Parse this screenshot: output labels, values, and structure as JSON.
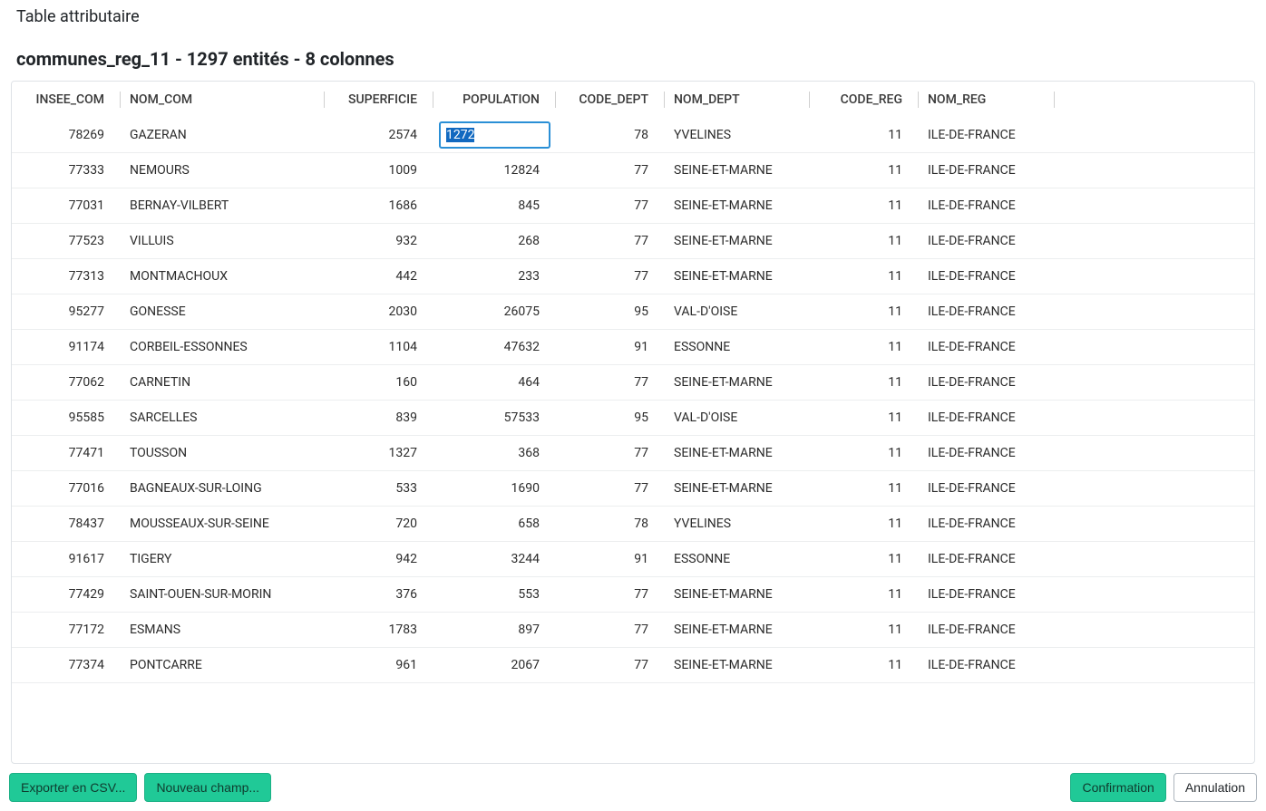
{
  "window": {
    "title": "Table attributaire"
  },
  "header": {
    "layer_name": "communes_reg_11",
    "entity_count": 1297,
    "entity_word": "entités",
    "column_count": 8,
    "column_word": "colonnes"
  },
  "table": {
    "columns": [
      {
        "key": "insee_com",
        "label": "INSEE_COM",
        "align": "right"
      },
      {
        "key": "nom_com",
        "label": "NOM_COM",
        "align": "left"
      },
      {
        "key": "superficie",
        "label": "SUPERFICIE",
        "align": "right"
      },
      {
        "key": "population",
        "label": "POPULATION",
        "align": "right"
      },
      {
        "key": "code_dept",
        "label": "CODE_DEPT",
        "align": "right"
      },
      {
        "key": "nom_dept",
        "label": "NOM_DEPT",
        "align": "left"
      },
      {
        "key": "code_reg",
        "label": "CODE_REG",
        "align": "right"
      },
      {
        "key": "nom_reg",
        "label": "NOM_REG",
        "align": "left"
      }
    ],
    "editing_cell": {
      "row": 0,
      "key": "population",
      "value": "1272"
    },
    "rows": [
      {
        "insee_com": "78269",
        "nom_com": "GAZERAN",
        "superficie": "2574",
        "population": "1272",
        "code_dept": "78",
        "nom_dept": "YVELINES",
        "code_reg": "11",
        "nom_reg": "ILE-DE-FRANCE"
      },
      {
        "insee_com": "77333",
        "nom_com": "NEMOURS",
        "superficie": "1009",
        "population": "12824",
        "code_dept": "77",
        "nom_dept": "SEINE-ET-MARNE",
        "code_reg": "11",
        "nom_reg": "ILE-DE-FRANCE"
      },
      {
        "insee_com": "77031",
        "nom_com": "BERNAY-VILBERT",
        "superficie": "1686",
        "population": "845",
        "code_dept": "77",
        "nom_dept": "SEINE-ET-MARNE",
        "code_reg": "11",
        "nom_reg": "ILE-DE-FRANCE"
      },
      {
        "insee_com": "77523",
        "nom_com": "VILLUIS",
        "superficie": "932",
        "population": "268",
        "code_dept": "77",
        "nom_dept": "SEINE-ET-MARNE",
        "code_reg": "11",
        "nom_reg": "ILE-DE-FRANCE"
      },
      {
        "insee_com": "77313",
        "nom_com": "MONTMACHOUX",
        "superficie": "442",
        "population": "233",
        "code_dept": "77",
        "nom_dept": "SEINE-ET-MARNE",
        "code_reg": "11",
        "nom_reg": "ILE-DE-FRANCE"
      },
      {
        "insee_com": "95277",
        "nom_com": "GONESSE",
        "superficie": "2030",
        "population": "26075",
        "code_dept": "95",
        "nom_dept": "VAL-D'OISE",
        "code_reg": "11",
        "nom_reg": "ILE-DE-FRANCE"
      },
      {
        "insee_com": "91174",
        "nom_com": "CORBEIL-ESSONNES",
        "superficie": "1104",
        "population": "47632",
        "code_dept": "91",
        "nom_dept": "ESSONNE",
        "code_reg": "11",
        "nom_reg": "ILE-DE-FRANCE"
      },
      {
        "insee_com": "77062",
        "nom_com": "CARNETIN",
        "superficie": "160",
        "population": "464",
        "code_dept": "77",
        "nom_dept": "SEINE-ET-MARNE",
        "code_reg": "11",
        "nom_reg": "ILE-DE-FRANCE"
      },
      {
        "insee_com": "95585",
        "nom_com": "SARCELLES",
        "superficie": "839",
        "population": "57533",
        "code_dept": "95",
        "nom_dept": "VAL-D'OISE",
        "code_reg": "11",
        "nom_reg": "ILE-DE-FRANCE"
      },
      {
        "insee_com": "77471",
        "nom_com": "TOUSSON",
        "superficie": "1327",
        "population": "368",
        "code_dept": "77",
        "nom_dept": "SEINE-ET-MARNE",
        "code_reg": "11",
        "nom_reg": "ILE-DE-FRANCE"
      },
      {
        "insee_com": "77016",
        "nom_com": "BAGNEAUX-SUR-LOING",
        "superficie": "533",
        "population": "1690",
        "code_dept": "77",
        "nom_dept": "SEINE-ET-MARNE",
        "code_reg": "11",
        "nom_reg": "ILE-DE-FRANCE"
      },
      {
        "insee_com": "78437",
        "nom_com": "MOUSSEAUX-SUR-SEINE",
        "superficie": "720",
        "population": "658",
        "code_dept": "78",
        "nom_dept": "YVELINES",
        "code_reg": "11",
        "nom_reg": "ILE-DE-FRANCE"
      },
      {
        "insee_com": "91617",
        "nom_com": "TIGERY",
        "superficie": "942",
        "population": "3244",
        "code_dept": "91",
        "nom_dept": "ESSONNE",
        "code_reg": "11",
        "nom_reg": "ILE-DE-FRANCE"
      },
      {
        "insee_com": "77429",
        "nom_com": "SAINT-OUEN-SUR-MORIN",
        "superficie": "376",
        "population": "553",
        "code_dept": "77",
        "nom_dept": "SEINE-ET-MARNE",
        "code_reg": "11",
        "nom_reg": "ILE-DE-FRANCE"
      },
      {
        "insee_com": "77172",
        "nom_com": "ESMANS",
        "superficie": "1783",
        "population": "897",
        "code_dept": "77",
        "nom_dept": "SEINE-ET-MARNE",
        "code_reg": "11",
        "nom_reg": "ILE-DE-FRANCE"
      },
      {
        "insee_com": "77374",
        "nom_com": "PONTCARRE",
        "superficie": "961",
        "population": "2067",
        "code_dept": "77",
        "nom_dept": "SEINE-ET-MARNE",
        "code_reg": "11",
        "nom_reg": "ILE-DE-FRANCE"
      }
    ]
  },
  "footer": {
    "export_csv_label": "Exporter en CSV...",
    "new_field_label": "Nouveau champ...",
    "confirm_label": "Confirmation",
    "cancel_label": "Annulation"
  },
  "colors": {
    "accent_teal": "#20c997",
    "edit_border": "#2a8fd6",
    "selection_bg": "#1169c0"
  }
}
